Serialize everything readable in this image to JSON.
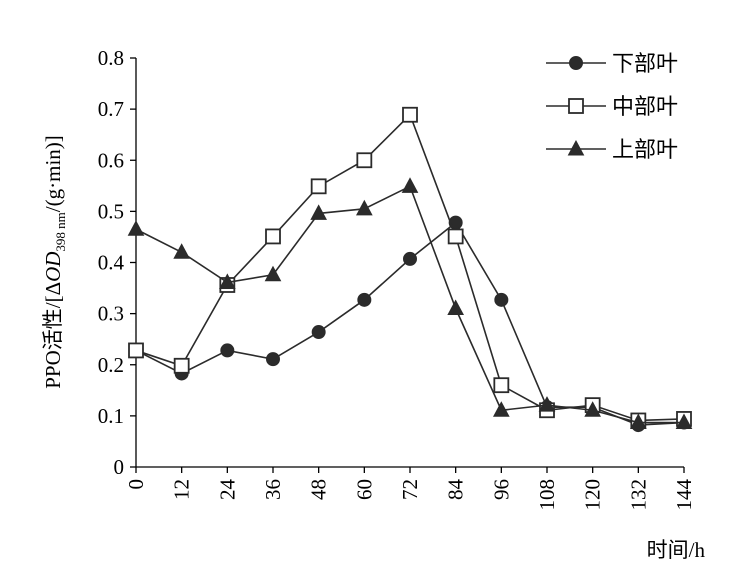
{
  "chart_data": {
    "type": "line",
    "x": [
      0,
      12,
      24,
      36,
      48,
      60,
      72,
      84,
      96,
      108,
      120,
      132,
      144
    ],
    "xlim": [
      0,
      144
    ],
    "ylim": [
      0,
      0.8
    ],
    "x_ticks": [
      "0",
      "12",
      "24",
      "36",
      "48",
      "60",
      "72",
      "84",
      "96",
      "108",
      "120",
      "132",
      "144"
    ],
    "y_ticks": [
      "0",
      "0.1",
      "0.2",
      "0.3",
      "0.4",
      "0.5",
      "0.6",
      "0.7",
      "0.8"
    ],
    "xlabel": "时间/h",
    "ylabel": {
      "prefix": "PPO活性/[Δ",
      "od": "OD",
      "sub": "398 nm",
      "suffix": "/(g·min)]"
    },
    "legend_position": "top-right",
    "grid": false,
    "series": [
      {
        "name": "下部叶",
        "marker": "circle",
        "values": [
          0.228,
          0.183,
          0.228,
          0.211,
          0.264,
          0.327,
          0.407,
          0.478,
          0.327,
          0.117,
          0.117,
          0.082,
          0.087
        ]
      },
      {
        "name": "中部叶",
        "marker": "square-open",
        "values": [
          0.228,
          0.198,
          0.356,
          0.451,
          0.549,
          0.6,
          0.689,
          0.451,
          0.16,
          0.111,
          0.121,
          0.091,
          0.094
        ]
      },
      {
        "name": "上部叶",
        "marker": "triangle",
        "values": [
          0.465,
          0.42,
          0.361,
          0.376,
          0.496,
          0.505,
          0.549,
          0.31,
          0.111,
          0.121,
          0.111,
          0.087,
          0.087
        ]
      }
    ]
  }
}
